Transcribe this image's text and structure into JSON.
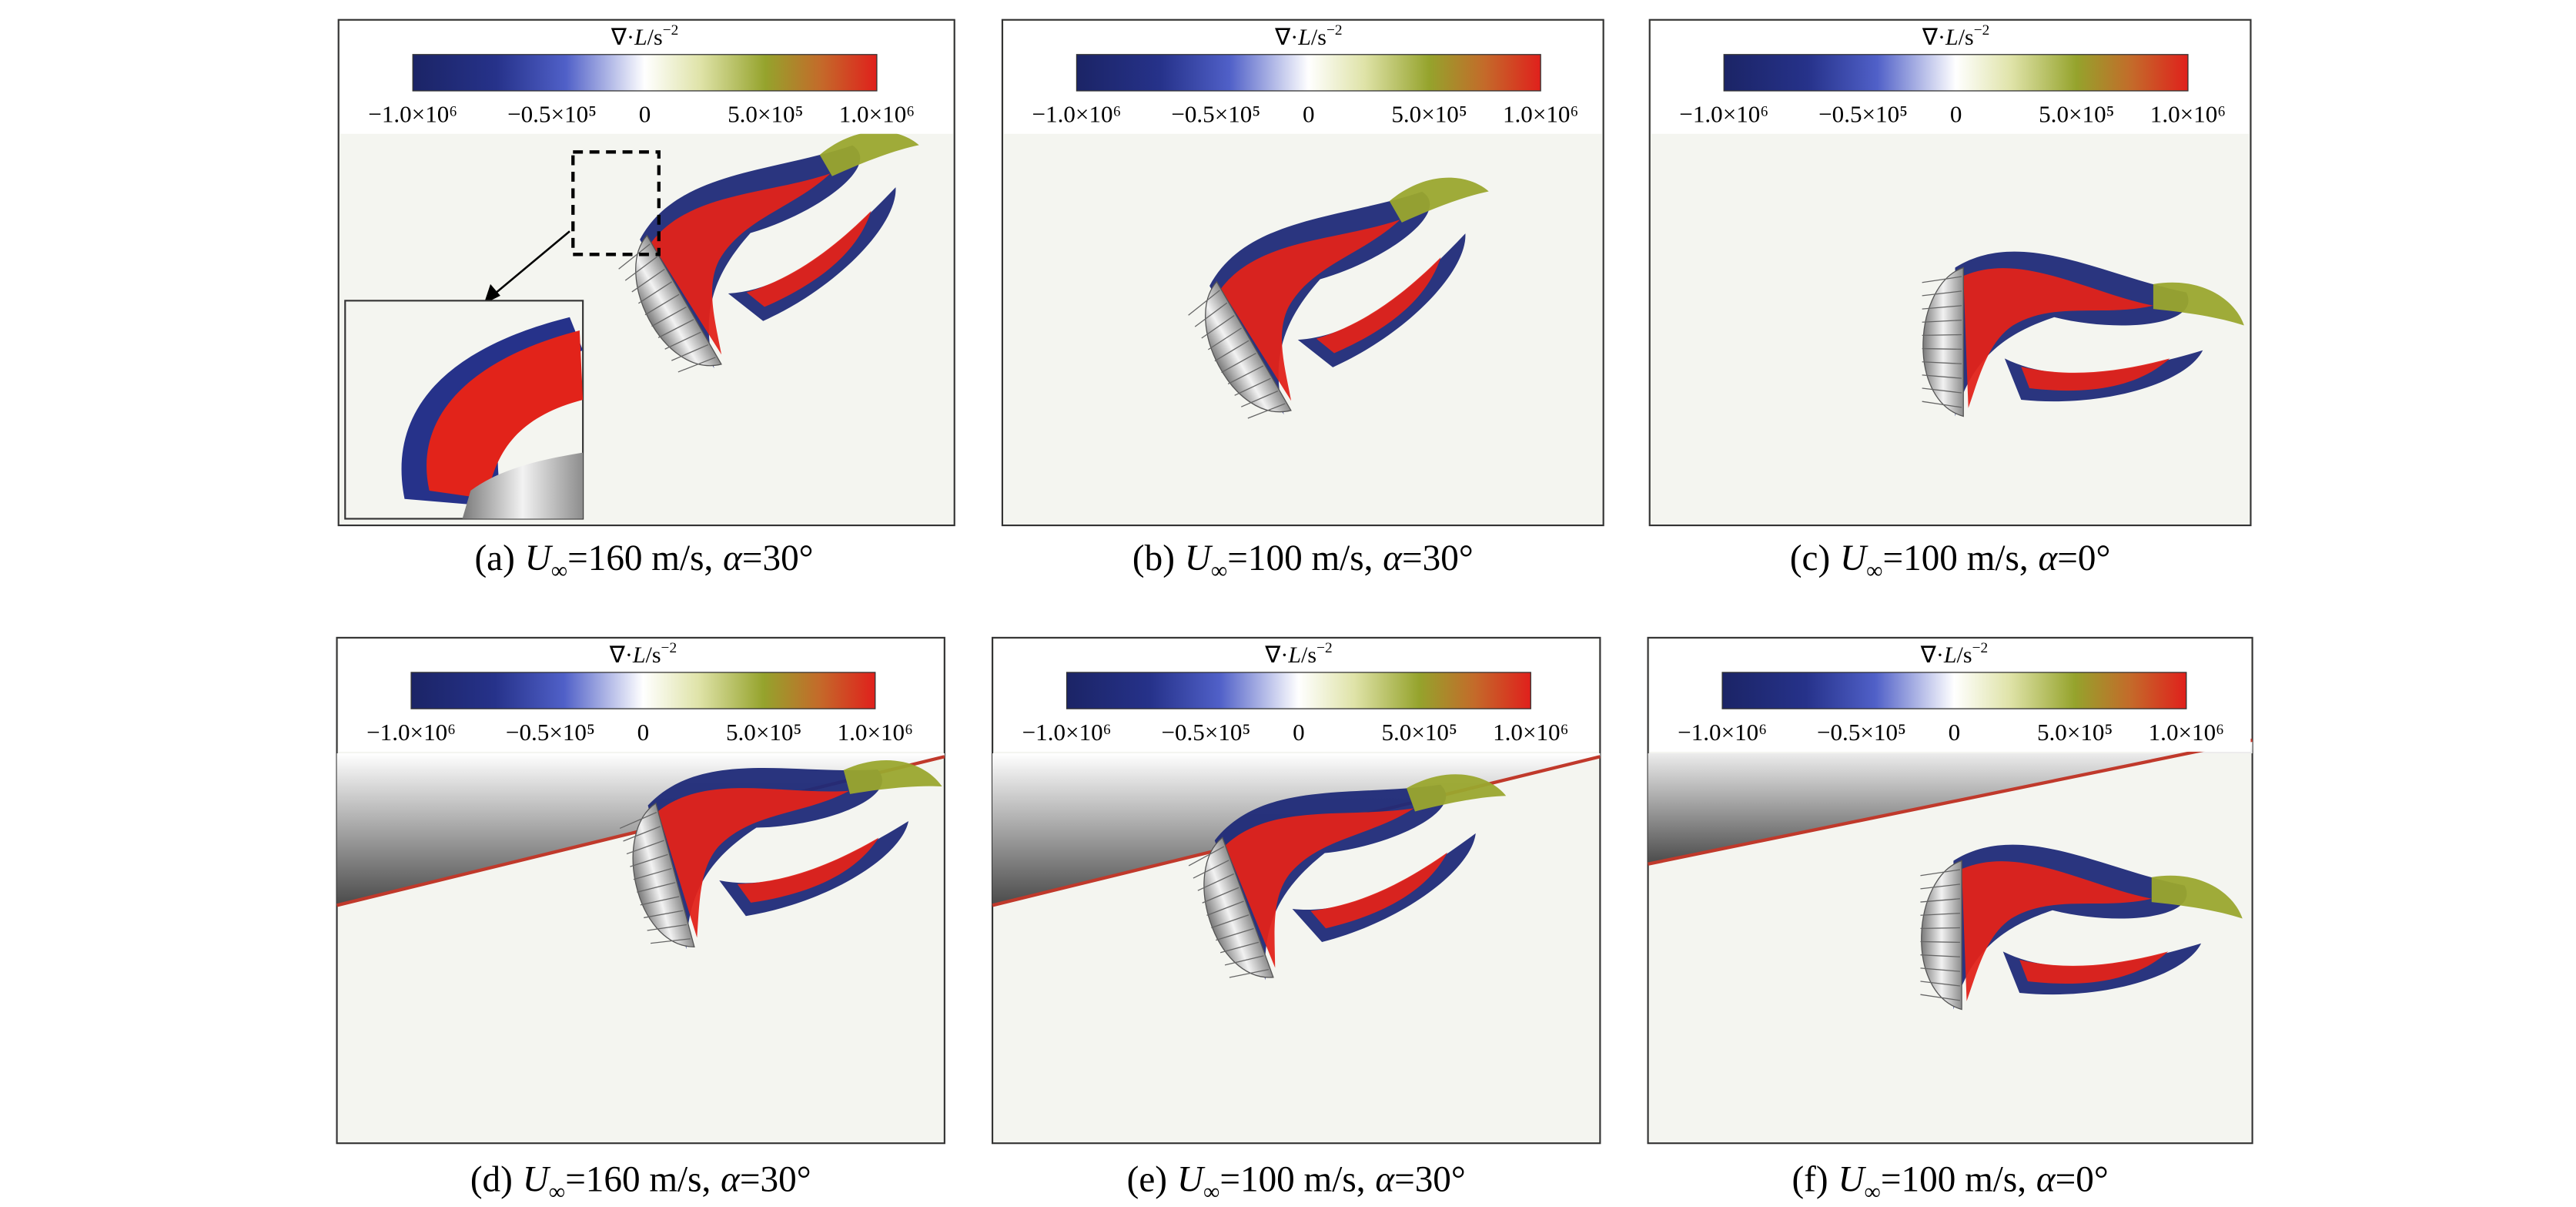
{
  "figure": {
    "colorbar": {
      "label_prefix": "∇·",
      "label_symbol": "L",
      "label_unit": "/s",
      "label_exponent": "−2",
      "ticks": [
        "−1.0×10⁶",
        "−0.5×10⁵",
        "0",
        "5.0×10⁵",
        "1.0×10⁶"
      ]
    },
    "panels": [
      {
        "label": "(a)",
        "symbol": "U",
        "subscript": "∞",
        "speed": "=160 m/s,",
        "angle_symbol": "α",
        "angle": "=30°"
      },
      {
        "label": "(b)",
        "symbol": "U",
        "subscript": "∞",
        "speed": "=100 m/s,",
        "angle_symbol": "α",
        "angle": "=30°"
      },
      {
        "label": "(c)",
        "symbol": "U",
        "subscript": "∞",
        "speed": "=100 m/s,",
        "angle_symbol": "α",
        "angle": "=0°"
      },
      {
        "label": "(d)",
        "symbol": "U",
        "subscript": "∞",
        "speed": "=160 m/s,",
        "angle_symbol": "α",
        "angle": "=30°"
      },
      {
        "label": "(e)",
        "symbol": "U",
        "subscript": "∞",
        "speed": "=100 m/s,",
        "angle_symbol": "α",
        "angle": "=30°"
      },
      {
        "label": "(f)",
        "symbol": "U",
        "subscript": "∞",
        "speed": "=100 m/s,",
        "angle_symbol": "α",
        "angle": "=0°"
      }
    ]
  }
}
